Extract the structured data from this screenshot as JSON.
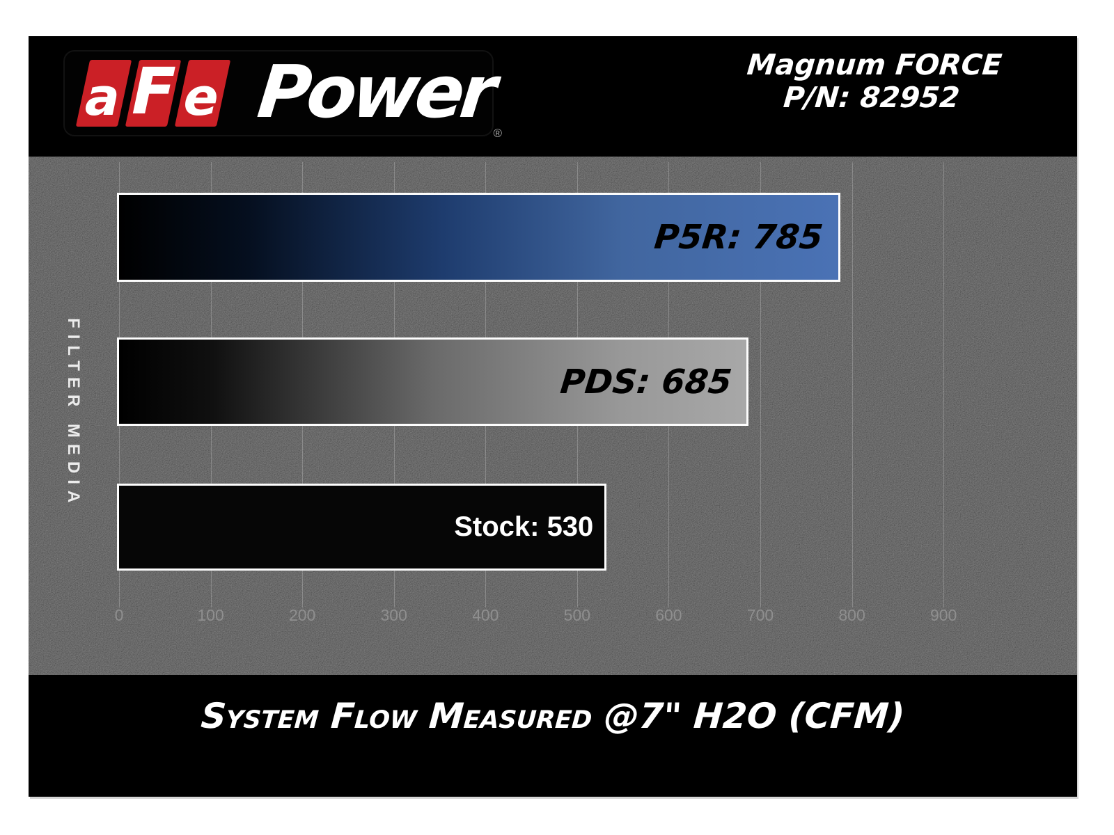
{
  "page": {
    "margin_color": "#ffffff",
    "panel_color": "#000000",
    "band_color": "#161616"
  },
  "logo": {
    "brand_letters": [
      "a",
      "F",
      "e"
    ],
    "brand_suffix": "Power",
    "registered": "®",
    "block_red": "#cb2026",
    "letter_color": "#ffffff"
  },
  "header": {
    "product_line": "Magnum FORCE",
    "part_number": "P/N: 82952"
  },
  "chart_data": {
    "type": "bar",
    "orientation": "horizontal",
    "title": "System Flow Measured @7\" H2O (CFM)",
    "ylabel": "FILTER MEDIA",
    "xlabel": "",
    "categories": [
      "P5R",
      "PDS",
      "Stock"
    ],
    "values": [
      785,
      685,
      530
    ],
    "series": [
      {
        "name": "P5R",
        "value": 785,
        "label": "P5R: 785",
        "label_color": "#000000",
        "label_style": "techno-italic",
        "gradient_stops": [
          [
            "0%",
            "#000000"
          ],
          [
            "18%",
            "#050f1f"
          ],
          [
            "45%",
            "#1e3c6e"
          ],
          [
            "70%",
            "#41669f"
          ],
          [
            "100%",
            "#4a72b5"
          ]
        ]
      },
      {
        "name": "PDS",
        "value": 685,
        "label": "PDS: 685",
        "label_color": "#000000",
        "label_style": "techno-italic",
        "gradient_stops": [
          [
            "0%",
            "#000000"
          ],
          [
            "15%",
            "#101010"
          ],
          [
            "50%",
            "#6a6a6a"
          ],
          [
            "80%",
            "#989898"
          ],
          [
            "100%",
            "#a8a8a8"
          ]
        ]
      },
      {
        "name": "Stock",
        "value": 530,
        "label": "Stock: 530",
        "label_color": "#ffffff",
        "label_style": "plain",
        "gradient_stops": [
          [
            "0%",
            "#060606"
          ],
          [
            "100%",
            "#060606"
          ]
        ]
      }
    ],
    "x_ticks": [
      0,
      100,
      200,
      300,
      400,
      500,
      600,
      700,
      800,
      900
    ],
    "xlim": [
      0,
      1045
    ],
    "grid": true,
    "gridline_color": "rgba(255,255,255,0.22)",
    "tick_label_color": "#8f8f8f",
    "bar_border_color": "#fdfdfd",
    "legend": "none",
    "value_labels_position": "inside-right"
  },
  "footer": {
    "title": "System Flow Measured @7\" H2O (CFM)"
  }
}
